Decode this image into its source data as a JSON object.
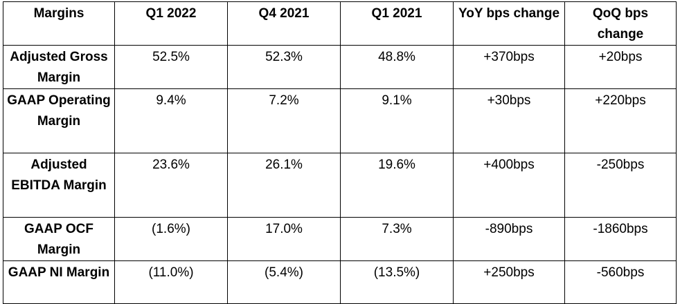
{
  "table": {
    "headers": [
      "Margins",
      "Q1 2022",
      "Q4 2021",
      "Q1 2021",
      "YoY bps change",
      "QoQ bps change"
    ],
    "rows": [
      {
        "label": "Adjusted Gross Margin",
        "values": [
          "52.5%",
          "52.3%",
          "48.8%",
          "+370bps",
          "+20bps"
        ]
      },
      {
        "label": "GAAP Operating Margin",
        "values": [
          "9.4%",
          "7.2%",
          "9.1%",
          "+30bps",
          "+220bps"
        ]
      },
      {
        "label": "Adjusted EBITDA Margin",
        "values": [
          "23.6%",
          "26.1%",
          "19.6%",
          "+400bps",
          "-250bps"
        ]
      },
      {
        "label": "GAAP OCF Margin",
        "values": [
          "(1.6%)",
          "17.0%",
          "7.3%",
          "-890bps",
          "-1860bps"
        ]
      },
      {
        "label": "GAAP NI Margin",
        "values": [
          "(11.0%)",
          "(5.4%)",
          "(13.5%)",
          "+250bps",
          "-560bps"
        ]
      }
    ]
  }
}
